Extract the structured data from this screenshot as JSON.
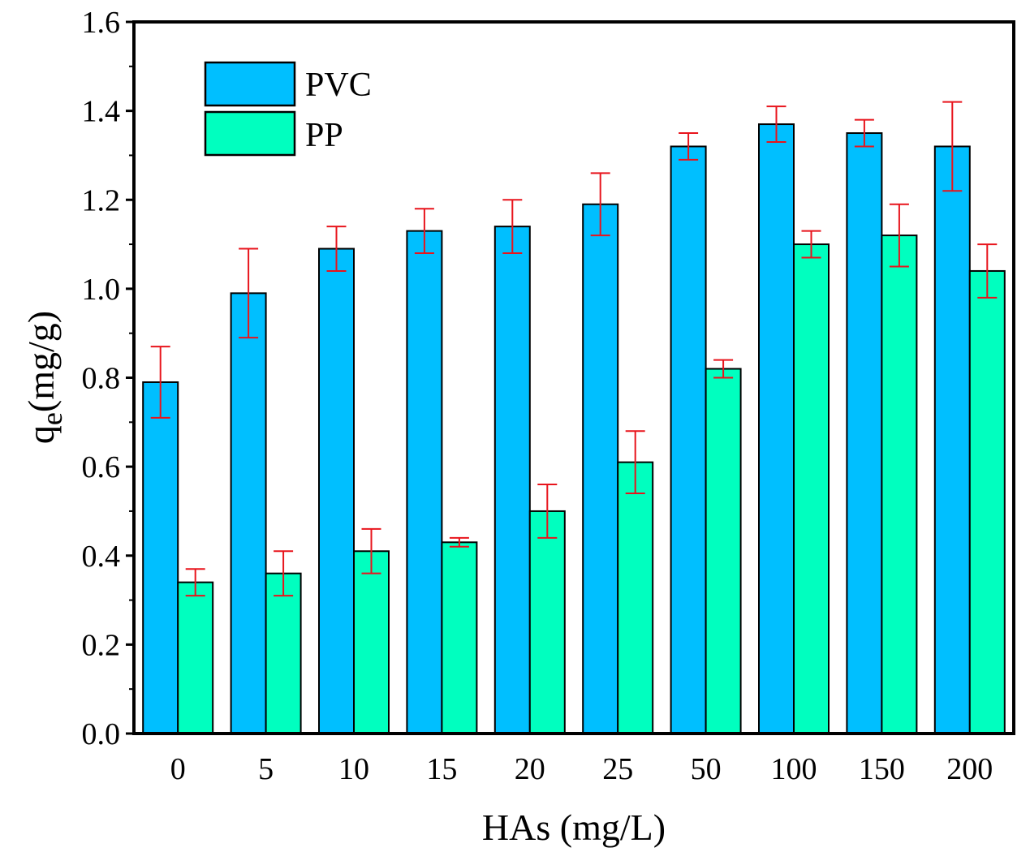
{
  "chart_data": {
    "type": "bar",
    "title": "",
    "xlabel": "HAs (mg/L)",
    "ylabel_main": "q",
    "ylabel_sub": "e",
    "ylabel_rest": "(mg/g)",
    "categories": [
      "0",
      "5",
      "10",
      "15",
      "20",
      "25",
      "50",
      "100",
      "150",
      "200"
    ],
    "ylim": [
      0,
      1.6
    ],
    "yticks": [
      "0.0",
      "0.2",
      "0.4",
      "0.6",
      "0.8",
      "1.0",
      "1.2",
      "1.4",
      "1.6"
    ],
    "legend_position": "top-left",
    "grid": false,
    "error_color": "#e8141c",
    "series": [
      {
        "name": "PVC",
        "color": "#00bfff",
        "values": [
          0.79,
          0.99,
          1.09,
          1.13,
          1.14,
          1.19,
          1.32,
          1.37,
          1.35,
          1.32
        ],
        "errors": [
          0.08,
          0.1,
          0.05,
          0.05,
          0.06,
          0.07,
          0.03,
          0.04,
          0.03,
          0.1
        ]
      },
      {
        "name": "PP",
        "color": "#00ffbf",
        "values": [
          0.34,
          0.36,
          0.41,
          0.43,
          0.5,
          0.61,
          0.82,
          1.1,
          1.12,
          1.04
        ],
        "errors": [
          0.03,
          0.05,
          0.05,
          0.01,
          0.06,
          0.07,
          0.02,
          0.03,
          0.07,
          0.06
        ]
      }
    ]
  }
}
